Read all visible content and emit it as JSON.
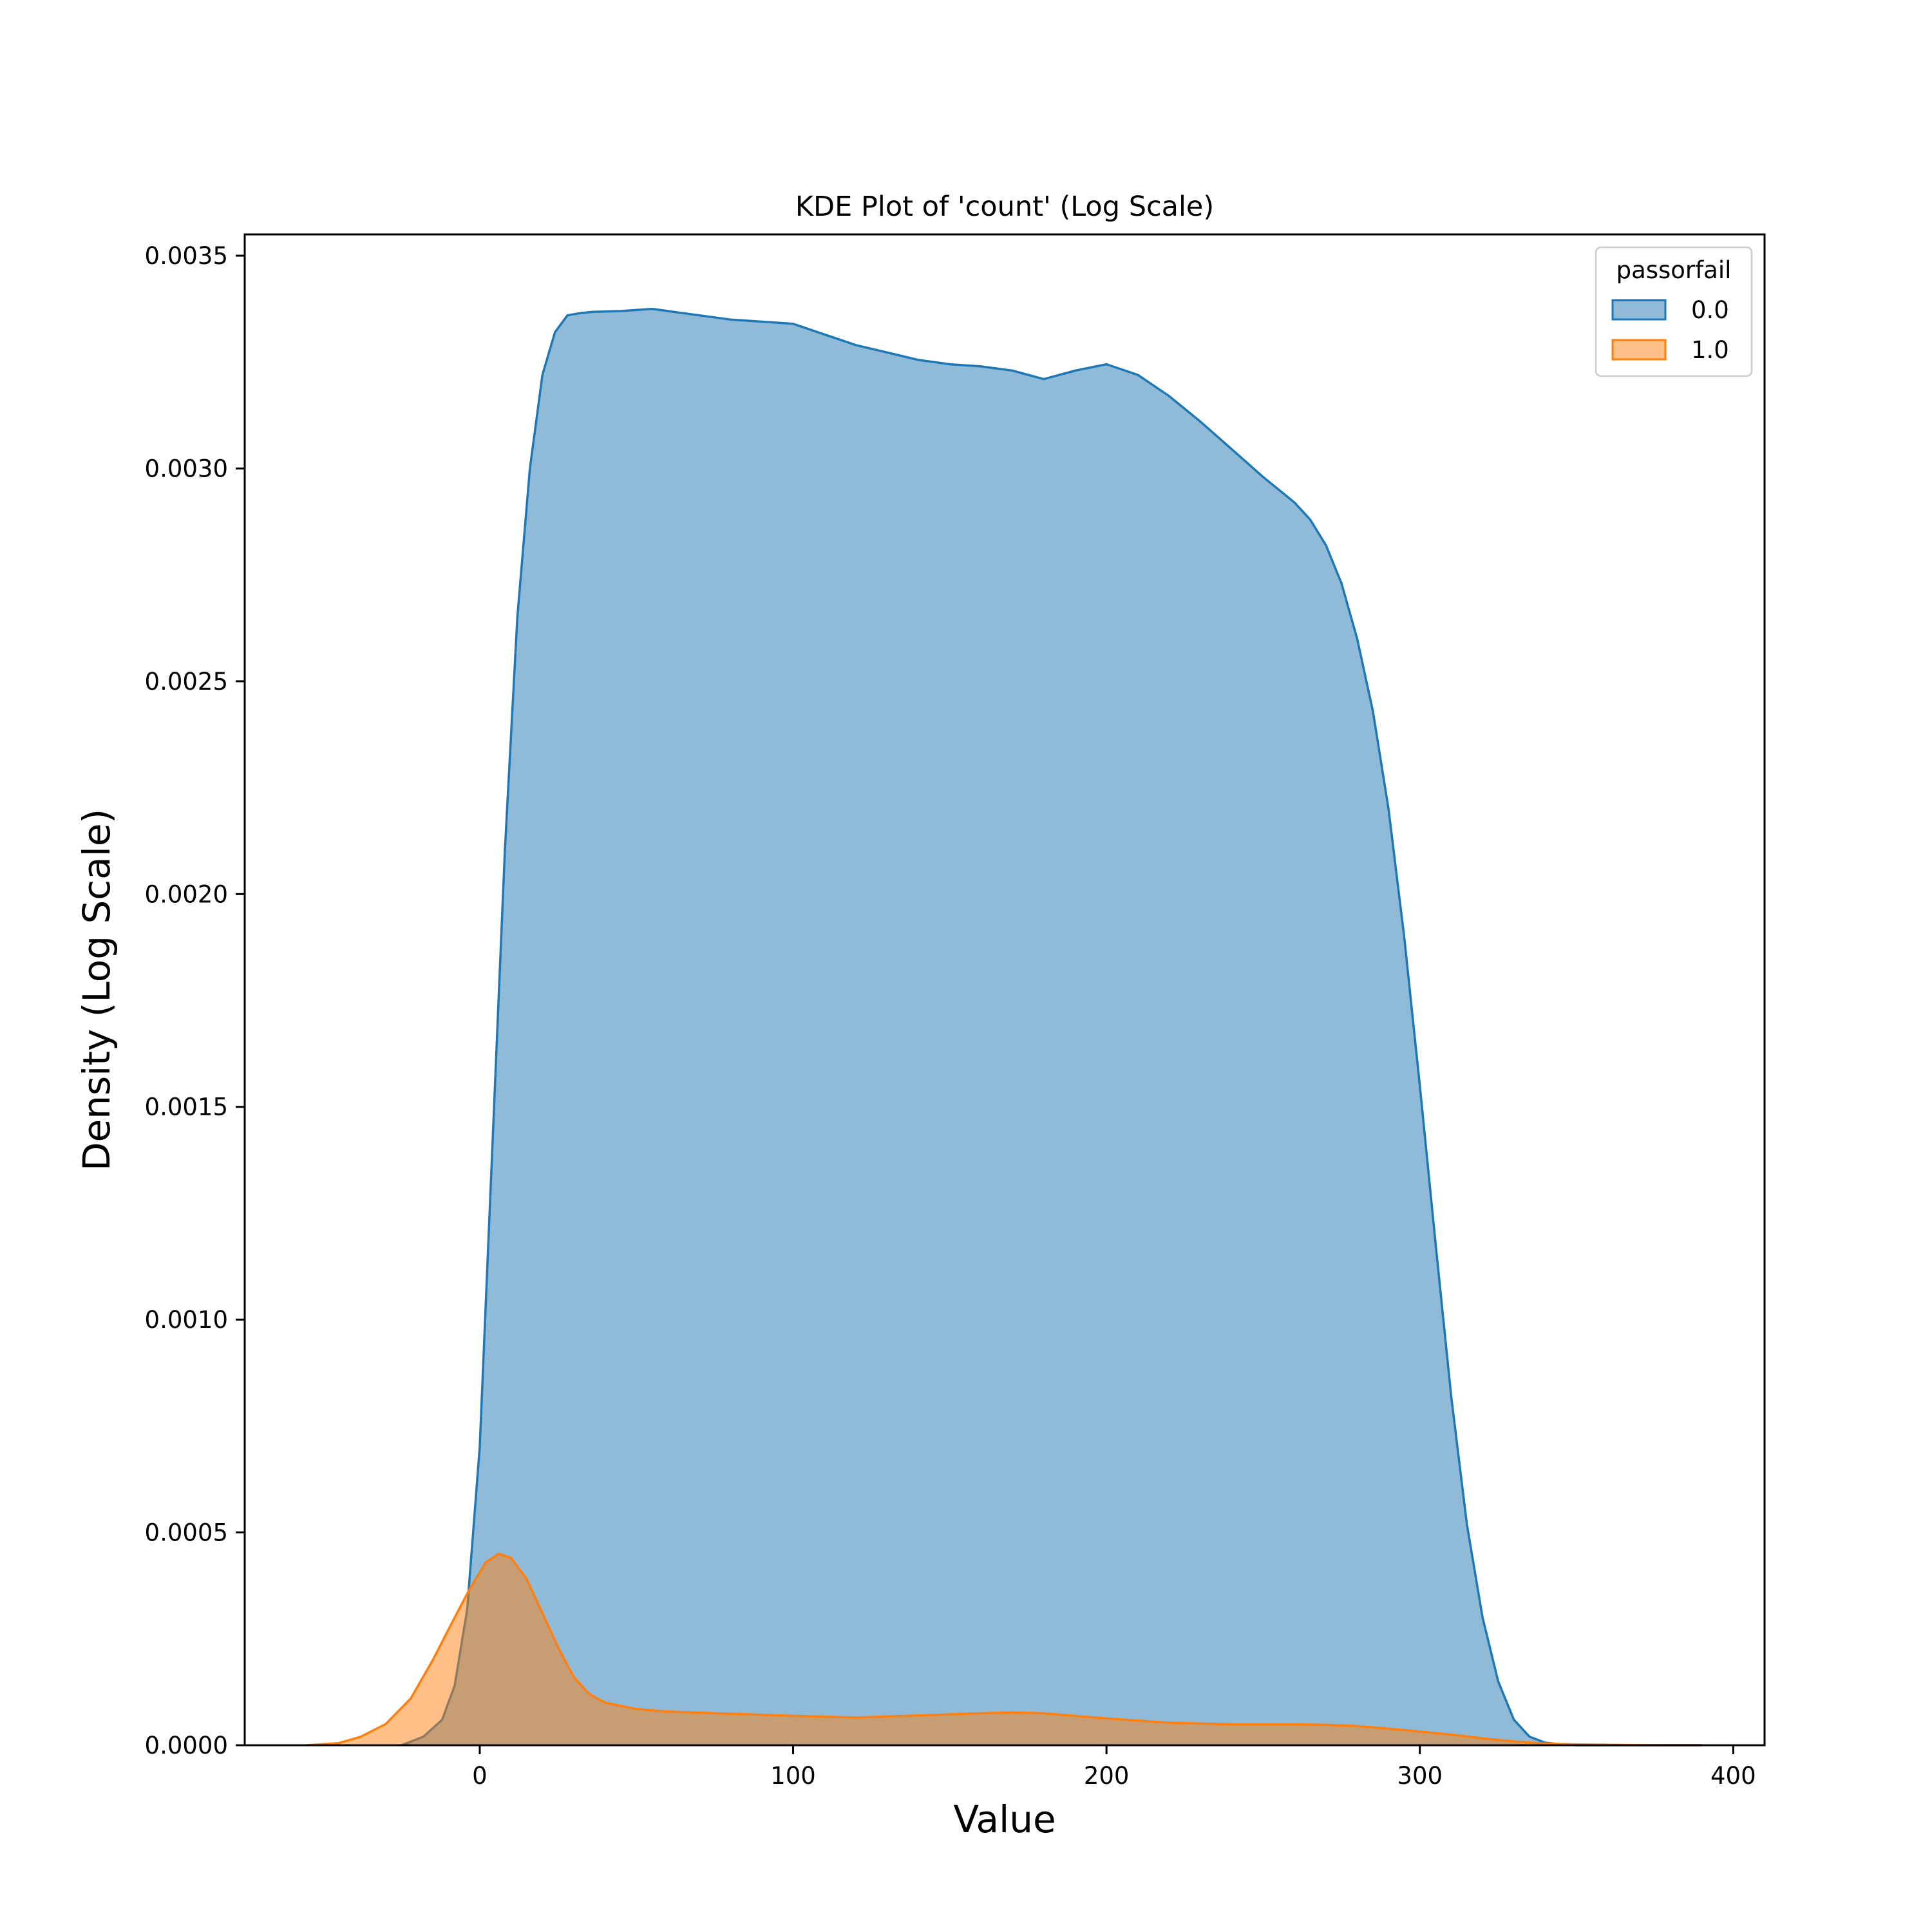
{
  "chart_data": {
    "type": "area",
    "title": "KDE Plot of 'count' (Log Scale)",
    "xlabel": "Value",
    "ylabel": "Density (Log Scale)",
    "xlim": [
      -75,
      410
    ],
    "ylim": [
      0,
      0.00355
    ],
    "xticks": [
      0,
      100,
      200,
      300,
      400
    ],
    "xtick_labels": [
      "0",
      "100",
      "200",
      "300",
      "400"
    ],
    "yticks": [
      0,
      0.0005,
      0.001,
      0.0015,
      0.002,
      0.0025,
      0.003,
      0.0035
    ],
    "ytick_labels": [
      "0.0000",
      "0.0005",
      "0.0010",
      "0.0015",
      "0.0020",
      "0.0025",
      "0.0030",
      "0.0035"
    ],
    "grid": false,
    "legend": {
      "title": "passorfail",
      "position": "top-right"
    },
    "series": [
      {
        "name": "0.0",
        "color": "#1f77b4",
        "x": [
          -25,
          -18,
          -12,
          -8,
          -4,
          0,
          4,
          8,
          12,
          16,
          20,
          24,
          28,
          32,
          36,
          45,
          55,
          65,
          80,
          100,
          120,
          140,
          150,
          160,
          170,
          180,
          190,
          200,
          210,
          220,
          230,
          240,
          250,
          260,
          265,
          270,
          275,
          280,
          285,
          290,
          295,
          300,
          305,
          310,
          315,
          320,
          325,
          330,
          335,
          340,
          345,
          350,
          360,
          375,
          390
        ],
        "y": [
          0.0,
          2e-05,
          6e-05,
          0.00014,
          0.00032,
          0.0007,
          0.0014,
          0.0021,
          0.00265,
          0.003,
          0.00322,
          0.00332,
          0.00336,
          0.003365,
          0.003368,
          0.00337,
          0.003375,
          0.003365,
          0.00335,
          0.00334,
          0.00329,
          0.003255,
          0.003245,
          0.00324,
          0.00323,
          0.00321,
          0.00323,
          0.003245,
          0.00322,
          0.00317,
          0.00311,
          0.003045,
          0.00298,
          0.00292,
          0.00288,
          0.00282,
          0.00273,
          0.0026,
          0.00243,
          0.0022,
          0.0019,
          0.00155,
          0.00118,
          0.00082,
          0.00052,
          0.0003,
          0.00015,
          6e-05,
          2e-05,
          6e-06,
          2e-06,
          0.0,
          0.0,
          0.0,
          0.0
        ],
        "opacity": 0.5
      },
      {
        "name": "1.0",
        "color": "#ff7f0e",
        "x": [
          -55,
          -45,
          -38,
          -30,
          -22,
          -15,
          -8,
          -3,
          2,
          6,
          10,
          15,
          20,
          25,
          30,
          35,
          40,
          50,
          60,
          80,
          100,
          120,
          140,
          160,
          170,
          180,
          200,
          220,
          240,
          260,
          270,
          280,
          290,
          300,
          310,
          320,
          330,
          340,
          350,
          360,
          375,
          390
        ],
        "y": [
          0.0,
          5e-06,
          2e-05,
          5e-05,
          0.00011,
          0.0002,
          0.0003,
          0.00037,
          0.00043,
          0.00045,
          0.00044,
          0.00039,
          0.00031,
          0.00023,
          0.00016,
          0.00012,
          0.0001,
          8.5e-05,
          7.9e-05,
          7.4e-05,
          6.9e-05,
          6.5e-05,
          7e-05,
          7.5e-05,
          7.7e-05,
          7.5e-05,
          6.3e-05,
          5.3e-05,
          4.9e-05,
          4.9e-05,
          4.8e-05,
          4.5e-05,
          3.9e-05,
          3.2e-05,
          2.5e-05,
          1.6e-05,
          9e-06,
          4e-06,
          2e-06,
          1e-06,
          0.0,
          0.0
        ],
        "opacity": 0.5
      }
    ]
  }
}
